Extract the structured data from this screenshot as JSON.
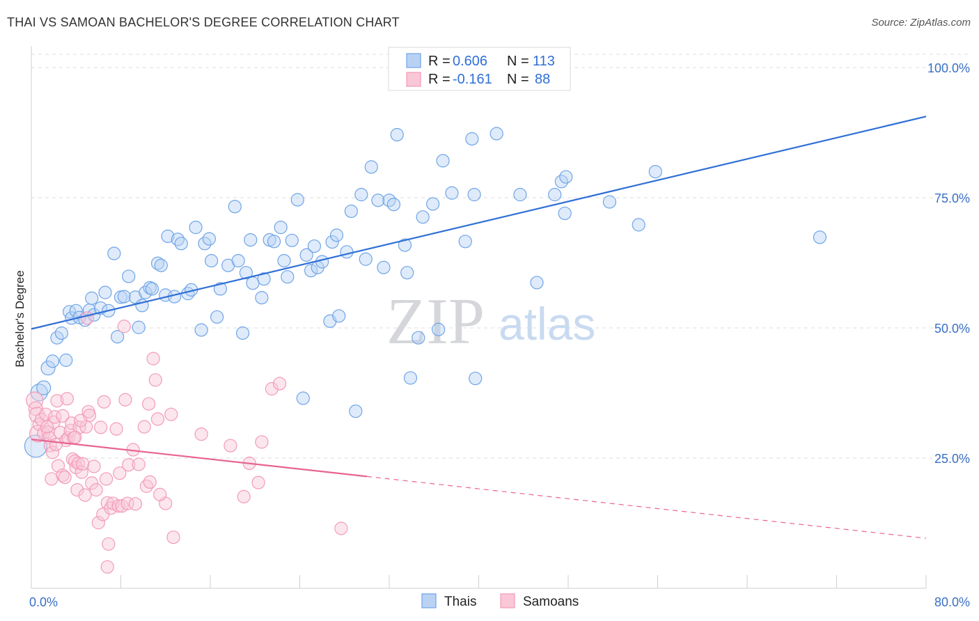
{
  "title": "THAI VS SAMOAN BACHELOR'S DEGREE CORRELATION CHART",
  "source": "Source: ZipAtlas.com",
  "watermark": {
    "zip": "ZIP",
    "atlas": "atlas"
  },
  "legend_top": {
    "rows": [
      {
        "r_label": "R = ",
        "r_value": "0.606",
        "n_label": "N = ",
        "n_value": "113"
      },
      {
        "r_label": "R = ",
        "r_value": "-0.161",
        "n_label": "N = ",
        "n_value": "88"
      }
    ]
  },
  "chart_data": {
    "type": "scatter",
    "title": "THAI VS SAMOAN BACHELOR'S DEGREE CORRELATION CHART",
    "xlabel": "",
    "ylabel": "Bachelor's Degree",
    "xlim": [
      0,
      80
    ],
    "ylim": [
      0,
      100
    ],
    "x_tick_labels": [
      "0.0%",
      "80.0%"
    ],
    "y_tick_labels": [
      "100.0%",
      "75.0%",
      "50.0%",
      "25.0%"
    ],
    "y_ticks": [
      100,
      75,
      50,
      25
    ],
    "grid": true,
    "legend_position": "bottom-center",
    "series": [
      {
        "name": "Thais",
        "color": "#6fa4e8",
        "line_color": "#2f6fd6",
        "trend": {
          "x": [
            0,
            80
          ],
          "y": [
            49.8,
            90.6
          ]
        },
        "points": [
          [
            0.4,
            27.3,
            16
          ],
          [
            0.7,
            37.6,
            12
          ],
          [
            1.1,
            38.5,
            10
          ],
          [
            1.5,
            42.3,
            10
          ],
          [
            1.9,
            43.6,
            9
          ],
          [
            2.3,
            48.1,
            9
          ],
          [
            2.7,
            49.0,
            9
          ],
          [
            3.1,
            43.8,
            9
          ],
          [
            3.4,
            53.1,
            9
          ],
          [
            3.6,
            51.9,
            9
          ],
          [
            4.0,
            53.3,
            9
          ],
          [
            4.3,
            52.0,
            9
          ],
          [
            4.8,
            51.5,
            9
          ],
          [
            5.2,
            53.4,
            9
          ],
          [
            5.6,
            52.5,
            9
          ],
          [
            5.4,
            55.7,
            9
          ],
          [
            6.2,
            53.8,
            9
          ],
          [
            6.6,
            56.8,
            9
          ],
          [
            6.9,
            53.3,
            9
          ],
          [
            7.4,
            64.3,
            9
          ],
          [
            7.7,
            48.3,
            9
          ],
          [
            8.0,
            55.9,
            9
          ],
          [
            8.3,
            56.0,
            9
          ],
          [
            8.7,
            59.9,
            9
          ],
          [
            9.3,
            55.9,
            9
          ],
          [
            9.6,
            50.1,
            9
          ],
          [
            9.9,
            54.3,
            9
          ],
          [
            10.2,
            56.8,
            9
          ],
          [
            10.6,
            57.7,
            9
          ],
          [
            10.8,
            57.5,
            9
          ],
          [
            11.3,
            62.4,
            9
          ],
          [
            11.6,
            62.0,
            9
          ],
          [
            12.0,
            56.3,
            9
          ],
          [
            12.2,
            67.6,
            9
          ],
          [
            12.8,
            56.0,
            9
          ],
          [
            13.1,
            67.0,
            9
          ],
          [
            13.4,
            66.2,
            9
          ],
          [
            14.0,
            56.6,
            9
          ],
          [
            14.3,
            57.3,
            9
          ],
          [
            14.7,
            69.3,
            9
          ],
          [
            15.2,
            49.6,
            9
          ],
          [
            15.5,
            66.2,
            9
          ],
          [
            15.9,
            67.1,
            9
          ],
          [
            16.1,
            62.9,
            9
          ],
          [
            16.6,
            52.1,
            9
          ],
          [
            16.9,
            57.5,
            9
          ],
          [
            17.6,
            62.0,
            9
          ],
          [
            18.2,
            73.3,
            9
          ],
          [
            18.5,
            62.9,
            9
          ],
          [
            18.9,
            49.0,
            9
          ],
          [
            19.2,
            60.6,
            9
          ],
          [
            19.6,
            66.9,
            9
          ],
          [
            19.8,
            58.6,
            9
          ],
          [
            20.6,
            55.8,
            9
          ],
          [
            20.8,
            59.4,
            9
          ],
          [
            21.3,
            66.9,
            9
          ],
          [
            21.7,
            66.6,
            9
          ],
          [
            22.3,
            69.3,
            9
          ],
          [
            22.6,
            62.9,
            9
          ],
          [
            22.9,
            59.8,
            9
          ],
          [
            23.3,
            66.8,
            9
          ],
          [
            23.8,
            74.6,
            9
          ],
          [
            24.3,
            36.5,
            9
          ],
          [
            24.6,
            64.0,
            9
          ],
          [
            25.0,
            61.0,
            9
          ],
          [
            25.3,
            65.7,
            9
          ],
          [
            25.6,
            61.6,
            9
          ],
          [
            26.0,
            62.7,
            9
          ],
          [
            26.7,
            51.3,
            9
          ],
          [
            26.9,
            66.5,
            9
          ],
          [
            27.3,
            67.8,
            9
          ],
          [
            27.5,
            52.3,
            9
          ],
          [
            28.2,
            64.6,
            9
          ],
          [
            28.6,
            72.4,
            9
          ],
          [
            29.0,
            34.0,
            9
          ],
          [
            29.5,
            75.6,
            9
          ],
          [
            29.9,
            63.2,
            9
          ],
          [
            30.4,
            80.9,
            9
          ],
          [
            31.0,
            74.5,
            9
          ],
          [
            31.5,
            61.6,
            9
          ],
          [
            32.0,
            74.5,
            9
          ],
          [
            32.4,
            73.7,
            9
          ],
          [
            32.7,
            87.1,
            9
          ],
          [
            33.4,
            65.9,
            9
          ],
          [
            33.6,
            60.6,
            9
          ],
          [
            33.9,
            40.4,
            9
          ],
          [
            34.6,
            48.1,
            9
          ],
          [
            35.0,
            71.3,
            9
          ],
          [
            35.9,
            73.8,
            9
          ],
          [
            36.4,
            49.7,
            9
          ],
          [
            36.8,
            82.1,
            9
          ],
          [
            37.6,
            75.9,
            9
          ],
          [
            38.8,
            66.6,
            9
          ],
          [
            39.4,
            86.3,
            9
          ],
          [
            39.6,
            75.6,
            9
          ],
          [
            39.7,
            40.3,
            9
          ],
          [
            41.6,
            87.3,
            9
          ],
          [
            43.7,
            75.6,
            9
          ],
          [
            45.2,
            58.7,
            9
          ],
          [
            46.8,
            75.6,
            9
          ],
          [
            47.4,
            78.1,
            9
          ],
          [
            47.8,
            79.0,
            9
          ],
          [
            47.7,
            72.0,
            9
          ],
          [
            51.7,
            74.2,
            9
          ],
          [
            54.3,
            69.8,
            9
          ],
          [
            55.8,
            80.0,
            9
          ],
          [
            70.5,
            67.4,
            9
          ]
        ]
      },
      {
        "name": "Samoans",
        "color": "#f29bb8",
        "line_color": "#e8638f",
        "trend": {
          "x": [
            0,
            80
          ],
          "y": [
            28.6,
            9.6
          ]
        },
        "trend_solid_until": 30,
        "points": [
          [
            0.3,
            36.1,
            12
          ],
          [
            0.4,
            34.5,
            10
          ],
          [
            0.5,
            33.3,
            11
          ],
          [
            0.6,
            29.7,
            12
          ],
          [
            0.7,
            31.5,
            9
          ],
          [
            0.9,
            32.4,
            9
          ],
          [
            1.1,
            29.8,
            9
          ],
          [
            1.3,
            33.4,
            9
          ],
          [
            1.5,
            30.0,
            9
          ],
          [
            1.6,
            28.9,
            9
          ],
          [
            1.7,
            27.4,
            9
          ],
          [
            1.8,
            21.0,
            9
          ],
          [
            1.9,
            26.1,
            9
          ],
          [
            2.0,
            31.9,
            9
          ],
          [
            2.1,
            32.9,
            9
          ],
          [
            2.3,
            36.0,
            9
          ],
          [
            2.4,
            23.5,
            9
          ],
          [
            2.6,
            29.9,
            9
          ],
          [
            2.8,
            33.1,
            9
          ],
          [
            2.8,
            21.7,
            9
          ],
          [
            3.0,
            21.3,
            9
          ],
          [
            3.1,
            28.4,
            9
          ],
          [
            3.2,
            36.4,
            9
          ],
          [
            3.3,
            28.9,
            9
          ],
          [
            3.5,
            30.3,
            9
          ],
          [
            3.6,
            31.7,
            9
          ],
          [
            3.7,
            24.8,
            9
          ],
          [
            3.8,
            28.9,
            9
          ],
          [
            3.9,
            24.4,
            9
          ],
          [
            4.0,
            23.2,
            9
          ],
          [
            4.1,
            18.9,
            9
          ],
          [
            4.2,
            24.0,
            9
          ],
          [
            4.3,
            30.9,
            9
          ],
          [
            4.5,
            22.3,
            9
          ],
          [
            4.6,
            23.9,
            9
          ],
          [
            4.8,
            17.9,
            9
          ],
          [
            4.9,
            31.0,
            9
          ],
          [
            5.1,
            33.9,
            9
          ],
          [
            5.2,
            33.2,
            9
          ],
          [
            5.4,
            20.2,
            9
          ],
          [
            5.6,
            23.4,
            9
          ],
          [
            5.8,
            18.9,
            9
          ],
          [
            6.0,
            12.6,
            9
          ],
          [
            6.2,
            30.9,
            9
          ],
          [
            6.4,
            14.2,
            9
          ],
          [
            6.5,
            35.8,
            9
          ],
          [
            6.7,
            21.0,
            9
          ],
          [
            6.8,
            16.4,
            9
          ],
          [
            6.9,
            8.5,
            9
          ],
          [
            7.1,
            15.4,
            9
          ],
          [
            7.3,
            16.3,
            9
          ],
          [
            7.6,
            30.6,
            9
          ],
          [
            7.8,
            15.8,
            9
          ],
          [
            7.9,
            22.1,
            9
          ],
          [
            8.1,
            15.8,
            9
          ],
          [
            8.4,
            36.2,
            9
          ],
          [
            8.6,
            16.3,
            9
          ],
          [
            8.7,
            23.7,
            9
          ],
          [
            9.1,
            26.6,
            9
          ],
          [
            9.3,
            16.2,
            9
          ],
          [
            9.6,
            23.8,
            9
          ],
          [
            10.1,
            31.0,
            9
          ],
          [
            10.3,
            19.6,
            9
          ],
          [
            10.6,
            20.4,
            9
          ],
          [
            10.9,
            44.1,
            9
          ],
          [
            11.1,
            40.0,
            9
          ],
          [
            11.3,
            32.5,
            9
          ],
          [
            12.0,
            16.3,
            9
          ],
          [
            12.7,
            9.8,
            9
          ],
          [
            12.5,
            33.4,
            9
          ],
          [
            15.2,
            29.6,
            9
          ],
          [
            17.8,
            27.4,
            9
          ],
          [
            19.0,
            17.6,
            9
          ],
          [
            19.5,
            24.0,
            9
          ],
          [
            20.3,
            20.3,
            9
          ],
          [
            20.6,
            28.1,
            9
          ],
          [
            21.5,
            38.3,
            9
          ],
          [
            22.2,
            39.3,
            9
          ],
          [
            27.7,
            11.5,
            9
          ],
          [
            8.3,
            50.3,
            9
          ],
          [
            5.0,
            51.9,
            9
          ],
          [
            11.5,
            18.0,
            9
          ],
          [
            6.8,
            4.1,
            9
          ],
          [
            10.5,
            35.4,
            9
          ],
          [
            4.4,
            32.2,
            9
          ],
          [
            3.9,
            29.0,
            9
          ],
          [
            2.2,
            27.6,
            9
          ],
          [
            1.4,
            31.0,
            9
          ]
        ]
      }
    ]
  },
  "legend_bottom": {
    "items": [
      "Thais",
      "Samoans"
    ]
  }
}
